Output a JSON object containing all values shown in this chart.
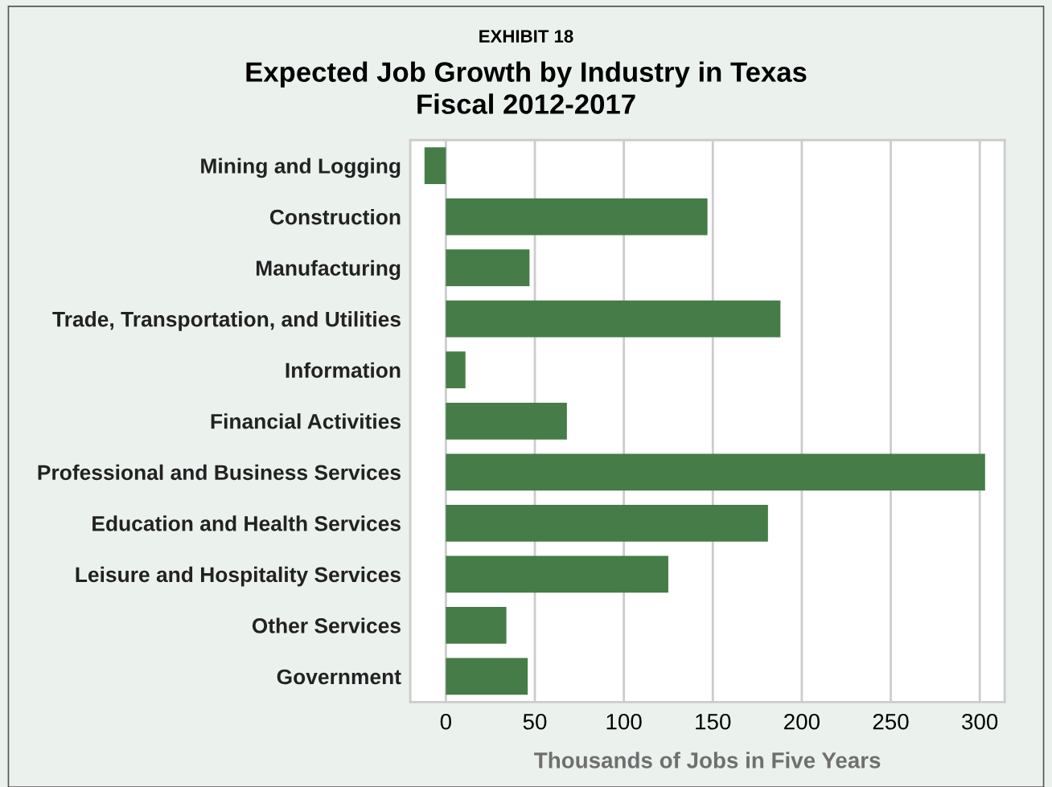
{
  "chart_data": {
    "type": "bar",
    "orientation": "horizontal",
    "subtitle": "EXHIBIT 18",
    "title": "Expected Job Growth by Industry in Texas\nFiscal 2012-2017",
    "xlabel": "Thousands of Jobs in Five Years",
    "categories": [
      "Mining and Logging",
      "Construction",
      "Manufacturing",
      "Trade, Transportation, and Utilities",
      "Information",
      "Financial Activities",
      "Professional and Business Services",
      "Education and Health Services",
      "Leisure and Hospitality Services",
      "Other Services",
      "Government"
    ],
    "values": [
      -12,
      147,
      47,
      188,
      11,
      68,
      303,
      181,
      125,
      34,
      46
    ],
    "color": "#457c48",
    "xlim": [
      -20,
      314
    ],
    "xticks": [
      0,
      50,
      100,
      150,
      200,
      250,
      300
    ],
    "grid": "x"
  }
}
